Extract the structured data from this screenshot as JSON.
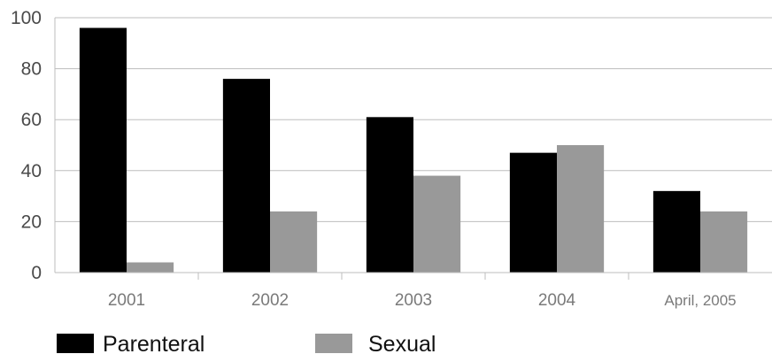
{
  "chart_data": {
    "type": "bar",
    "categories": [
      "2001",
      "2002",
      "2003",
      "2004",
      "April, 2005"
    ],
    "series": [
      {
        "name": "Parenteral",
        "values": [
          96,
          76,
          61,
          47,
          32
        ],
        "color": "#000000"
      },
      {
        "name": "Sexual",
        "values": [
          4,
          24,
          38,
          50,
          24
        ],
        "color": "#999999"
      }
    ],
    "y_ticks": [
      "0",
      "20",
      "40",
      "60",
      "80",
      "100"
    ],
    "ylim": [
      0,
      100
    ],
    "grid": true,
    "legend_placement": "bottom-left",
    "title": "",
    "xlabel": "",
    "ylabel": ""
  }
}
